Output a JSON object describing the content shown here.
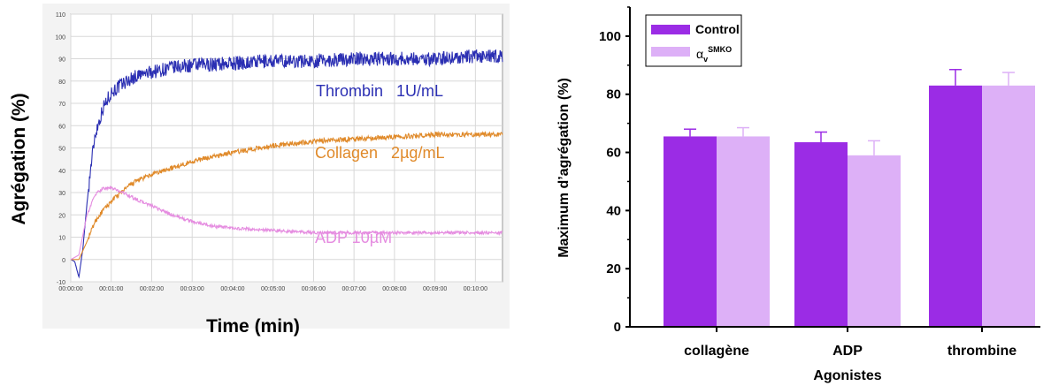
{
  "chart_data": [
    {
      "type": "line",
      "xlabel": "Time (min)",
      "ylabel": "Agrégation (%)",
      "ylim": [
        -10,
        110
      ],
      "yticks": [
        "-10",
        "0",
        "10",
        "20",
        "30",
        "40",
        "50",
        "60",
        "70",
        "80",
        "90",
        "100",
        "110"
      ],
      "xlim": [
        0,
        10.67
      ],
      "xticks": [
        "00:00:00",
        "00:01:00",
        "00:02:00",
        "00:03:00",
        "00:04:00",
        "00:05:00",
        "00:06:00",
        "00:07:00",
        "00:08:00",
        "00:09:00",
        "00:10:00"
      ],
      "grid": true,
      "series": [
        {
          "name": "Thrombin   1U/mL",
          "color": "#2b2fb3",
          "x": [
            0,
            0.1,
            0.2,
            0.3,
            0.4,
            0.5,
            0.6,
            0.8,
            1.0,
            1.3,
            1.6,
            2.0,
            2.5,
            3.0,
            4.0,
            5.0,
            6.0,
            7.0,
            8.0,
            9.0,
            10.0,
            10.67
          ],
          "y": [
            0,
            -1,
            -8,
            5,
            25,
            42,
            56,
            68,
            75,
            79,
            82,
            84,
            86,
            87,
            88,
            89,
            89,
            90,
            90,
            90,
            91,
            91
          ]
        },
        {
          "name": "Collagen   2µg/mL",
          "color": "#e08a2a",
          "x": [
            0,
            0.2,
            0.4,
            0.6,
            0.8,
            1.0,
            1.3,
            1.6,
            2.0,
            2.5,
            3.0,
            3.5,
            4.0,
            5.0,
            6.0,
            7.0,
            8.0,
            9.0,
            10.0,
            10.67
          ],
          "y": [
            0,
            0,
            8,
            17,
            22,
            26,
            31,
            35,
            38,
            41,
            44,
            46,
            48,
            51,
            53,
            54,
            55,
            56,
            56,
            56
          ]
        },
        {
          "name": "ADP 10µM",
          "color": "#e58ce0",
          "x": [
            0,
            0.2,
            0.4,
            0.6,
            0.8,
            1.0,
            1.3,
            1.6,
            2.0,
            2.5,
            3.0,
            3.5,
            4.0,
            5.0,
            6.0,
            7.0,
            8.0,
            9.0,
            10.0,
            10.67
          ],
          "y": [
            0,
            2,
            20,
            29,
            32,
            32,
            30,
            27,
            24,
            20,
            17,
            15,
            14,
            13,
            12,
            12,
            12,
            12,
            12,
            12
          ]
        }
      ]
    },
    {
      "type": "bar",
      "xlabel": "Agonistes",
      "ylabel": "Maximum d’agrégation (%)",
      "ylim": [
        0,
        110
      ],
      "yticks": [
        "0",
        "20",
        "40",
        "60",
        "80",
        "100"
      ],
      "categories": [
        "collagène",
        "ADP",
        "thrombine"
      ],
      "legend_position": "top-left",
      "series": [
        {
          "name": "Control",
          "color": "#9b2ce5",
          "values": [
            65.5,
            63.5,
            83
          ],
          "errors": [
            2.5,
            3.5,
            5.5
          ]
        },
        {
          "name_base": "α",
          "name_sub": "v",
          "name_sup": "SMKO",
          "color": "#ddb0f7",
          "values": [
            65.5,
            59,
            83
          ],
          "errors": [
            3,
            5,
            4.5
          ]
        }
      ]
    }
  ]
}
